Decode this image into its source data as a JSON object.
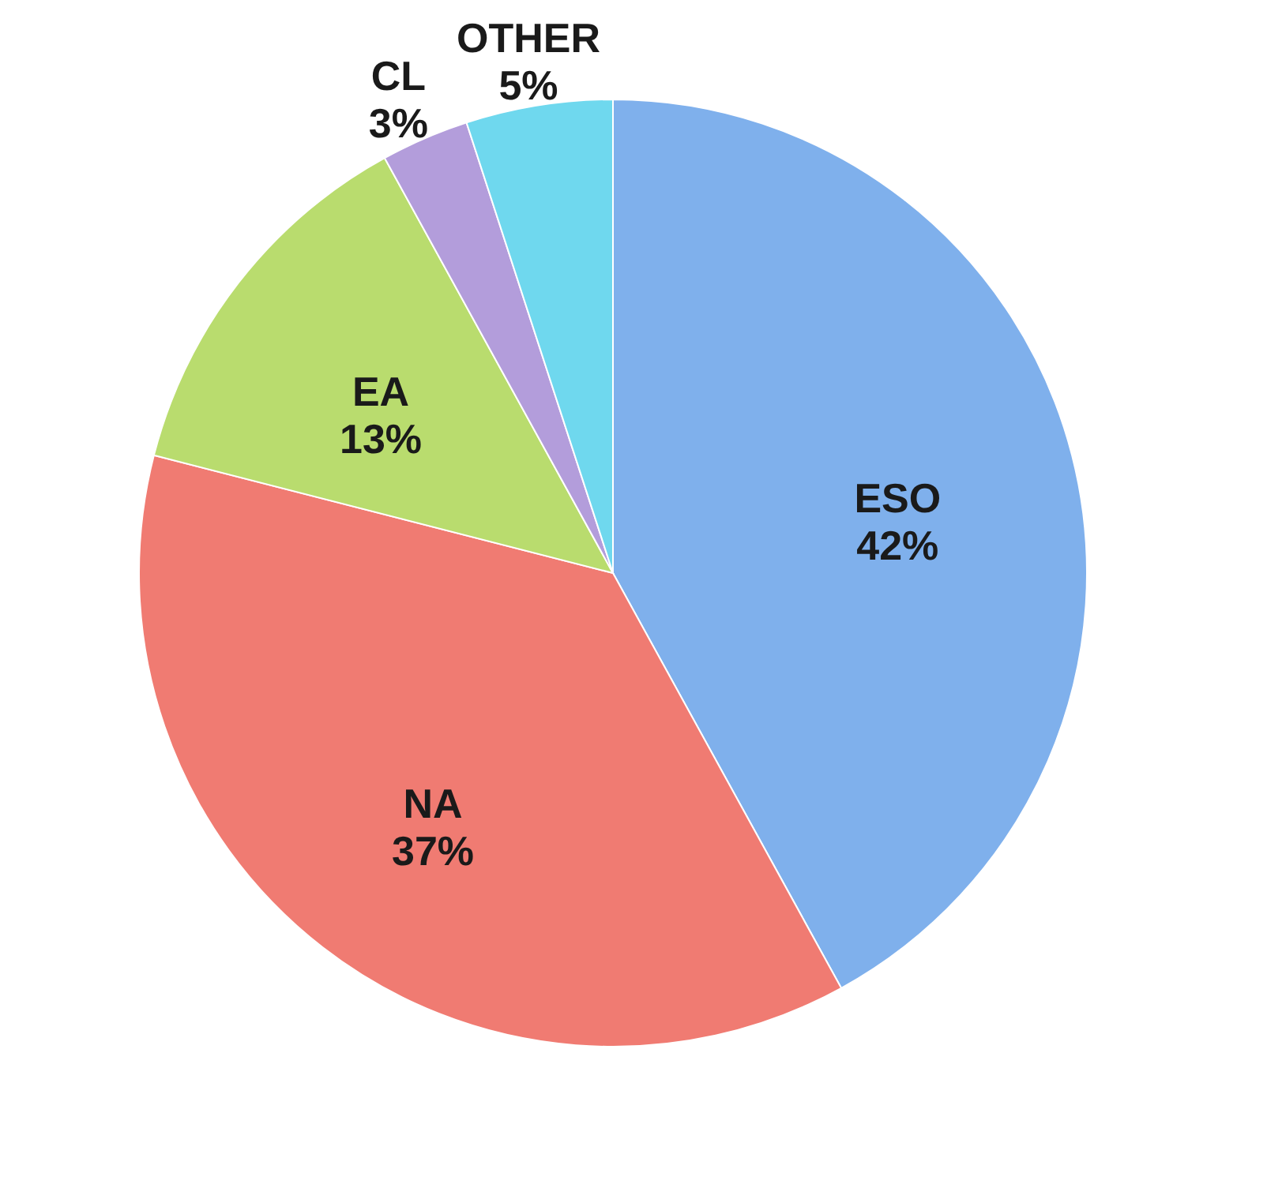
{
  "chart_data": {
    "type": "pie",
    "categories": [
      "ESO",
      "NA",
      "EA",
      "CL",
      "OTHER"
    ],
    "values": [
      42,
      37,
      13,
      3,
      5
    ],
    "value_labels": [
      "42%",
      "37%",
      "13%",
      "3%",
      "5%"
    ],
    "colors": [
      "#7fb0ec",
      "#f07b72",
      "#b9dc6e",
      "#b39ddb",
      "#6fd8ee"
    ],
    "legend": false
  }
}
